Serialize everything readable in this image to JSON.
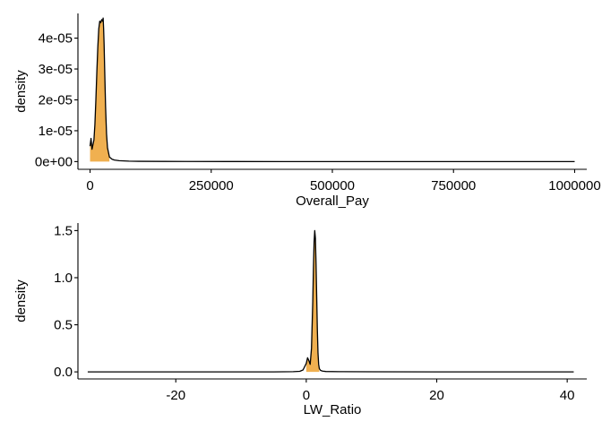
{
  "colors": {
    "fill": "#F0B050",
    "line": "#000000",
    "axis": "#000000",
    "background": "#FFFFFF"
  },
  "chart_data": [
    {
      "type": "area",
      "xlabel": "Overall_Pay",
      "ylabel": "density",
      "xlim": [
        -25000,
        1025000
      ],
      "ylim": [
        -2.5e-06,
        4.8e-05
      ],
      "x_ticks": [
        0,
        250000,
        500000,
        750000,
        1000000
      ],
      "x_tick_labels": [
        "0",
        "250000",
        "500000",
        "750000",
        "1000000"
      ],
      "y_ticks": [
        0,
        1e-05,
        2e-05,
        3e-05,
        4e-05
      ],
      "y_tick_labels": [
        "0e+00",
        "1e-05",
        "2e-05",
        "3e-05",
        "4e-05"
      ],
      "grid": false,
      "legend": "none",
      "fill_range": [
        0,
        40000
      ],
      "series": [
        {
          "x": [
            0,
            2000,
            4000,
            6000,
            8000,
            10000,
            12000,
            14000,
            16000,
            18000,
            20000,
            22000,
            24000,
            26000,
            27000,
            28000,
            29000,
            30000,
            32000,
            34000,
            36000,
            40000,
            45000,
            50000,
            60000,
            80000,
            100000,
            150000,
            200000,
            300000,
            400000,
            500000,
            600000,
            700000,
            800000,
            900000,
            1000000
          ],
          "values": [
            5e-06,
            7.5e-06,
            4e-06,
            5.5e-06,
            7e-06,
            1.2e-05,
            2e-05,
            2.9e-05,
            3.7e-05,
            4.3e-05,
            4.55e-05,
            4.5e-05,
            4.6e-05,
            4.55e-05,
            4.65e-05,
            4.3e-05,
            3.8e-05,
            3.1e-05,
            1.8e-05,
            9e-06,
            4.5e-06,
            1.5e-06,
            8e-07,
            5e-07,
            3e-07,
            1.5e-07,
            1e-07,
            5e-08,
            3e-08,
            2e-08,
            1e-08,
            1e-08,
            0.0,
            0.0,
            0.0,
            0.0,
            0.0
          ]
        }
      ]
    },
    {
      "type": "area",
      "xlabel": "LW_Ratio",
      "ylabel": "density",
      "xlim": [
        -35,
        43
      ],
      "ylim": [
        -0.075,
        1.58
      ],
      "x_ticks": [
        -20,
        0,
        20,
        40
      ],
      "x_tick_labels": [
        "-20",
        "0",
        "20",
        "40"
      ],
      "y_ticks": [
        0,
        0.5,
        1.0,
        1.5
      ],
      "y_tick_labels": [
        "0.0",
        "0.5",
        "1.0",
        "1.5"
      ],
      "grid": false,
      "legend": "none",
      "fill_range": [
        0,
        2
      ],
      "series": [
        {
          "x": [
            -33.5,
            -20,
            -10,
            -5,
            -2,
            -1,
            -0.5,
            0,
            0.2,
            0.4,
            0.6,
            0.8,
            1.0,
            1.1,
            1.2,
            1.3,
            1.4,
            1.5,
            1.6,
            1.7,
            1.8,
            1.9,
            2.0,
            2.2,
            2.5,
            3,
            5,
            10,
            20,
            30,
            41
          ],
          "values": [
            0.0,
            0.0,
            0.0,
            0.0,
            0.002,
            0.006,
            0.02,
            0.09,
            0.15,
            0.12,
            0.08,
            0.25,
            0.75,
            1.1,
            1.38,
            1.5,
            1.42,
            1.15,
            0.8,
            0.45,
            0.2,
            0.08,
            0.035,
            0.015,
            0.008,
            0.004,
            0.002,
            0.001,
            0.0,
            0.0,
            0.0
          ]
        }
      ]
    }
  ]
}
